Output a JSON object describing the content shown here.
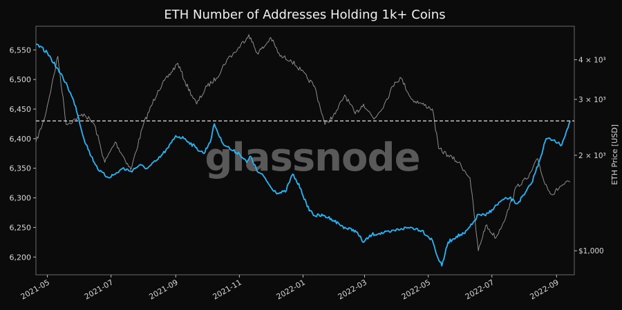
{
  "chart_data": {
    "type": "line",
    "title": "ETH Number of Addresses Holding 1k+ Coins",
    "watermark": "glassnode",
    "ylabel": "",
    "y2label": "ETH Price [USD]",
    "xlim": [
      "2021-04-20",
      "2022-09-18"
    ],
    "ylim": [
      6170,
      6590
    ],
    "y2lim": [
      840,
      5100
    ],
    "y2scale": "log",
    "grid": false,
    "background": "#0b0b0b",
    "x_ticks": [
      "2021-05",
      "2021-07",
      "2021-09",
      "2021-11",
      "2022-01",
      "2022-03",
      "2022-05",
      "2022-07",
      "2022-09"
    ],
    "y_ticks": [
      "6,200",
      "6,250",
      "6,300",
      "6,350",
      "6,400",
      "6,450",
      "6,500",
      "6,550"
    ],
    "y_tick_values": [
      6200,
      6250,
      6300,
      6350,
      6400,
      6450,
      6500,
      6550
    ],
    "y2_ticks": [
      {
        "label": "$1,000",
        "value": 1000
      },
      {
        "label": "2 × 10³",
        "value": 2000
      },
      {
        "label": "3 × 10³",
        "value": 3000
      },
      {
        "label": "4 × 10³",
        "value": 4000
      }
    ],
    "reference_line": {
      "axis": "y",
      "value": 6430,
      "style": "dashed",
      "color": "#e6e6e6"
    },
    "series": [
      {
        "axis": "left",
        "color": "#29b6f6",
        "points": [
          [
            "2021-04-20",
            6560
          ],
          [
            "2021-05-01",
            6545
          ],
          [
            "2021-05-10",
            6520
          ],
          [
            "2021-05-20",
            6490
          ],
          [
            "2021-05-28",
            6455
          ],
          [
            "2021-06-05",
            6400
          ],
          [
            "2021-06-12",
            6370
          ],
          [
            "2021-06-20",
            6345
          ],
          [
            "2021-06-28",
            6335
          ],
          [
            "2021-07-05",
            6340
          ],
          [
            "2021-07-12",
            6350
          ],
          [
            "2021-07-20",
            6345
          ],
          [
            "2021-07-28",
            6355
          ],
          [
            "2021-08-05",
            6350
          ],
          [
            "2021-08-15",
            6365
          ],
          [
            "2021-08-25",
            6385
          ],
          [
            "2021-09-01",
            6405
          ],
          [
            "2021-09-10",
            6400
          ],
          [
            "2021-09-20",
            6385
          ],
          [
            "2021-09-28",
            6375
          ],
          [
            "2021-10-05",
            6400
          ],
          [
            "2021-10-08",
            6425
          ],
          [
            "2021-10-15",
            6395
          ],
          [
            "2021-10-25",
            6380
          ],
          [
            "2021-11-01",
            6375
          ],
          [
            "2021-11-08",
            6360
          ],
          [
            "2021-11-12",
            6370
          ],
          [
            "2021-11-18",
            6345
          ],
          [
            "2021-11-25",
            6335
          ],
          [
            "2021-12-01",
            6318
          ],
          [
            "2021-12-08",
            6308
          ],
          [
            "2021-12-15",
            6310
          ],
          [
            "2021-12-22",
            6340
          ],
          [
            "2021-12-30",
            6315
          ],
          [
            "2022-01-05",
            6285
          ],
          [
            "2022-01-12",
            6270
          ],
          [
            "2022-01-20",
            6270
          ],
          [
            "2022-01-28",
            6265
          ],
          [
            "2022-02-05",
            6255
          ],
          [
            "2022-02-12",
            6248
          ],
          [
            "2022-02-20",
            6245
          ],
          [
            "2022-02-28",
            6225
          ],
          [
            "2022-03-08",
            6238
          ],
          [
            "2022-03-15",
            6240
          ],
          [
            "2022-03-25",
            6242
          ],
          [
            "2022-04-05",
            6248
          ],
          [
            "2022-04-15",
            6250
          ],
          [
            "2022-04-25",
            6245
          ],
          [
            "2022-05-05",
            6228
          ],
          [
            "2022-05-10",
            6200
          ],
          [
            "2022-05-14",
            6185
          ],
          [
            "2022-05-20",
            6225
          ],
          [
            "2022-05-28",
            6235
          ],
          [
            "2022-06-05",
            6240
          ],
          [
            "2022-06-12",
            6255
          ],
          [
            "2022-06-18",
            6272
          ],
          [
            "2022-06-25",
            6270
          ],
          [
            "2022-07-01",
            6280
          ],
          [
            "2022-07-10",
            6295
          ],
          [
            "2022-07-18",
            6300
          ],
          [
            "2022-07-25",
            6290
          ],
          [
            "2022-08-01",
            6305
          ],
          [
            "2022-08-08",
            6325
          ],
          [
            "2022-08-15",
            6360
          ],
          [
            "2022-08-22",
            6400
          ],
          [
            "2022-08-30",
            6398
          ],
          [
            "2022-09-05",
            6388
          ],
          [
            "2022-09-10",
            6410
          ],
          [
            "2022-09-14",
            6430
          ]
        ]
      },
      {
        "axis": "right",
        "color": "#8f8f8f",
        "points": [
          [
            "2021-04-20",
            2200
          ],
          [
            "2021-04-28",
            2600
          ],
          [
            "2021-05-05",
            3300
          ],
          [
            "2021-05-11",
            4100
          ],
          [
            "2021-05-19",
            2500
          ],
          [
            "2021-05-28",
            2600
          ],
          [
            "2021-06-05",
            2700
          ],
          [
            "2021-06-15",
            2500
          ],
          [
            "2021-06-25",
            1900
          ],
          [
            "2021-07-05",
            2200
          ],
          [
            "2021-07-20",
            1800
          ],
          [
            "2021-08-01",
            2500
          ],
          [
            "2021-08-15",
            3200
          ],
          [
            "2021-09-03",
            3900
          ],
          [
            "2021-09-10",
            3400
          ],
          [
            "2021-09-21",
            2900
          ],
          [
            "2021-10-01",
            3300
          ],
          [
            "2021-10-10",
            3500
          ],
          [
            "2021-10-20",
            4000
          ],
          [
            "2021-10-30",
            4300
          ],
          [
            "2021-11-10",
            4800
          ],
          [
            "2021-11-18",
            4200
          ],
          [
            "2021-11-25",
            4400
          ],
          [
            "2021-12-01",
            4700
          ],
          [
            "2021-12-10",
            4100
          ],
          [
            "2021-12-20",
            4000
          ],
          [
            "2021-12-30",
            3700
          ],
          [
            "2022-01-05",
            3500
          ],
          [
            "2022-01-12",
            3300
          ],
          [
            "2022-01-22",
            2500
          ],
          [
            "2022-02-01",
            2700
          ],
          [
            "2022-02-10",
            3100
          ],
          [
            "2022-02-20",
            2700
          ],
          [
            "2022-02-28",
            2900
          ],
          [
            "2022-03-10",
            2600
          ],
          [
            "2022-03-20",
            2900
          ],
          [
            "2022-03-30",
            3400
          ],
          [
            "2022-04-05",
            3500
          ],
          [
            "2022-04-15",
            3000
          ],
          [
            "2022-04-25",
            2900
          ],
          [
            "2022-05-05",
            2800
          ],
          [
            "2022-05-11",
            2100
          ],
          [
            "2022-05-20",
            2000
          ],
          [
            "2022-05-30",
            1900
          ],
          [
            "2022-06-10",
            1700
          ],
          [
            "2022-06-18",
            1000
          ],
          [
            "2022-06-25",
            1200
          ],
          [
            "2022-07-05",
            1100
          ],
          [
            "2022-07-15",
            1300
          ],
          [
            "2022-07-25",
            1600
          ],
          [
            "2022-08-05",
            1700
          ],
          [
            "2022-08-14",
            1950
          ],
          [
            "2022-08-20",
            1650
          ],
          [
            "2022-08-28",
            1500
          ],
          [
            "2022-09-05",
            1600
          ],
          [
            "2022-09-14",
            1650
          ]
        ]
      }
    ]
  }
}
